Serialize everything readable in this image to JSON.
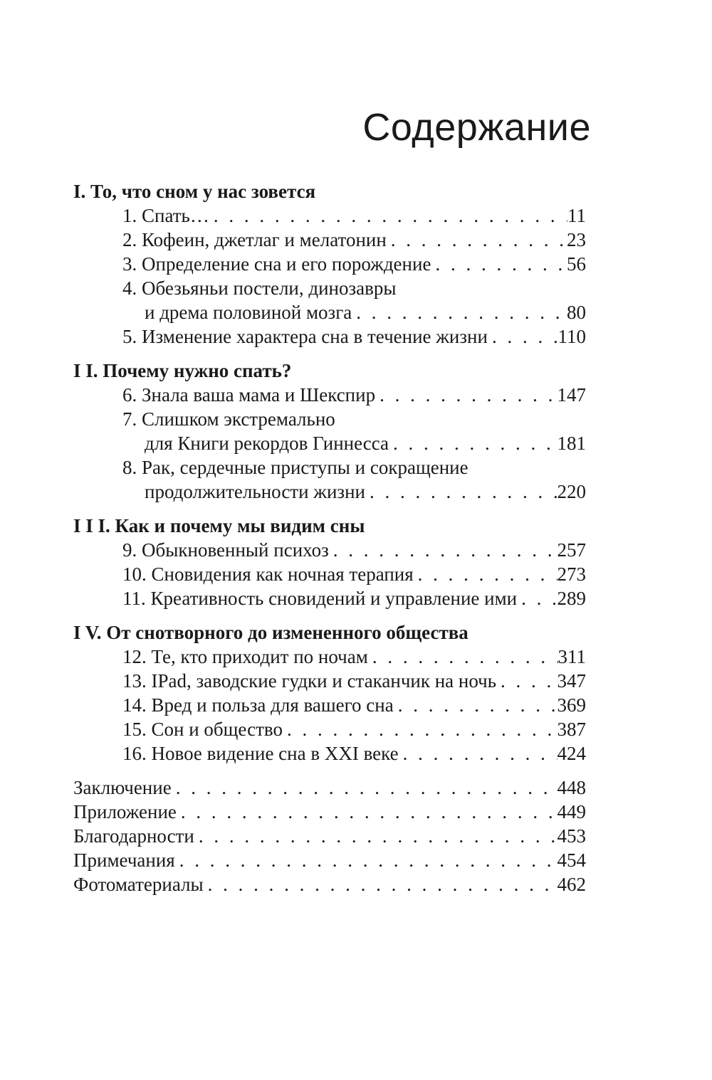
{
  "title": "Содержание",
  "sections": [
    {
      "heading": "I. То, что сном у нас зовется",
      "entries": [
        {
          "label": "1. Спать…",
          "page": "11"
        },
        {
          "label": "2. Кофеин, джетлаг и мелатонин",
          "page": "23"
        },
        {
          "label": "3. Определение сна и его порождение",
          "page": "56"
        },
        {
          "label": "4. Обезьяньи постели, динозавры",
          "cont": "и дрема половиной мозга",
          "page": "80"
        },
        {
          "label": "5. Изменение характера сна в течение жизни",
          "page": "110"
        }
      ]
    },
    {
      "heading": "I I. Почему нужно спать?",
      "entries": [
        {
          "label": "6. Знала ваша мама и Шекспир",
          "page": "147"
        },
        {
          "label": "7. Слишком экстремально",
          "cont": "для Книги рекордов Гиннесса",
          "page": "181"
        },
        {
          "label": "8. Рак, сердечные приступы и сокращение",
          "cont": "продолжительности жизни",
          "page": "220"
        }
      ]
    },
    {
      "heading": "I I I. Как и почему мы видим сны",
      "entries": [
        {
          "label": "9. Обыкновенный психоз",
          "page": "257"
        },
        {
          "label": "10. Сновидения как ночная терапия",
          "page": "273"
        },
        {
          "label": "11. Креативность сновидений и управление ими",
          "page": "289"
        }
      ]
    },
    {
      "heading": "I V. От снотворного до измененного общества",
      "entries": [
        {
          "label": "12. Те, кто приходит по ночам",
          "page": "311"
        },
        {
          "label": "13. IPad, заводские гудки и стаканчик на ночь",
          "page": "347"
        },
        {
          "label": "14. Вред и польза для вашего сна",
          "page": "369"
        },
        {
          "label": "15. Сон и общество",
          "page": "387"
        },
        {
          "label": "16. Новое видение сна в XXI веке",
          "page": "424"
        }
      ]
    }
  ],
  "back_matter": [
    {
      "label": "Заключение",
      "page": "448"
    },
    {
      "label": "Приложение",
      "page": "449"
    },
    {
      "label": "Благодарности",
      "page": "453"
    },
    {
      "label": "Примечания",
      "page": "454"
    },
    {
      "label": "Фотоматериалы",
      "page": "462"
    }
  ]
}
